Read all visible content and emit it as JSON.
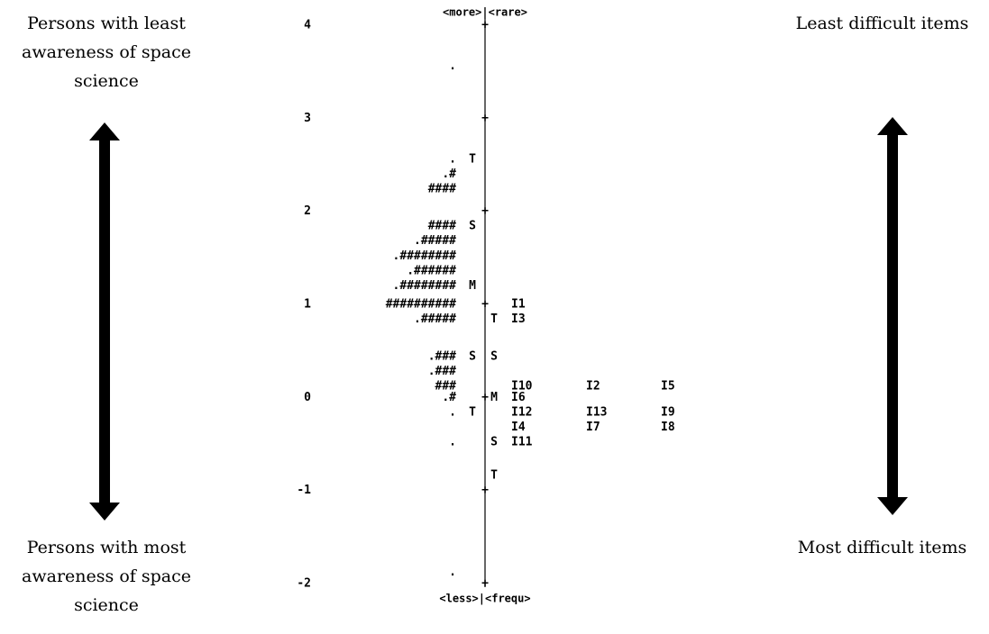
{
  "captions": {
    "left_top": "Persons with least awareness of space science",
    "left_bottom": "Persons with most awareness of space science",
    "right_top": "Least difficult items",
    "right_bottom": "Most difficult items"
  },
  "chart_data": {
    "type": "table",
    "top_label": "<more>|<rare>",
    "bottom_label": "<less>|<frequ>",
    "y_ticks": [
      "4",
      "3",
      "2",
      "1",
      "0",
      "-1",
      "-2"
    ],
    "ylim": [
      -2,
      4
    ],
    "rows": [
      {
        "y": 3.56,
        "persons": ".",
        "person_mark": "",
        "axis": "|",
        "item_mark": "",
        "items": []
      },
      {
        "y": 2.56,
        "persons": ".",
        "person_mark": "T",
        "axis": "|",
        "item_mark": "",
        "items": []
      },
      {
        "y": 2.4,
        "persons": ".#",
        "person_mark": "",
        "axis": "|",
        "item_mark": "",
        "items": []
      },
      {
        "y": 2.24,
        "persons": "####",
        "person_mark": "",
        "axis": "|",
        "item_mark": "",
        "items": []
      },
      {
        "y": 1.84,
        "persons": "####",
        "person_mark": "S",
        "axis": "|",
        "item_mark": "",
        "items": []
      },
      {
        "y": 1.68,
        "persons": ".#####",
        "person_mark": "",
        "axis": "|",
        "item_mark": "",
        "items": []
      },
      {
        "y": 1.52,
        "persons": ".########",
        "person_mark": "",
        "axis": "|",
        "item_mark": "",
        "items": []
      },
      {
        "y": 1.36,
        "persons": ".######",
        "person_mark": "",
        "axis": "|",
        "item_mark": "",
        "items": []
      },
      {
        "y": 1.2,
        "persons": ".########",
        "person_mark": "M",
        "axis": "|",
        "item_mark": "",
        "items": []
      },
      {
        "y": 1.0,
        "persons": "##########",
        "person_mark": "",
        "axis": "+",
        "item_mark": "",
        "items": [
          "I1"
        ]
      },
      {
        "y": 0.84,
        "persons": ".#####",
        "person_mark": "",
        "axis": "|",
        "item_mark": "T",
        "items": [
          "I3"
        ]
      },
      {
        "y": 0.44,
        "persons": ".###",
        "person_mark": "S",
        "axis": "|",
        "item_mark": "S",
        "items": []
      },
      {
        "y": 0.28,
        "persons": ".###",
        "person_mark": "",
        "axis": "|",
        "item_mark": "",
        "items": []
      },
      {
        "y": 0.12,
        "persons": "###",
        "person_mark": "",
        "axis": "|",
        "item_mark": "",
        "items": [
          "I10",
          "I2",
          "I5"
        ]
      },
      {
        "y": 0.0,
        "persons": ".#",
        "person_mark": "",
        "axis": "+",
        "item_mark": "M",
        "items": [
          "I6"
        ]
      },
      {
        "y": -0.16,
        "persons": ".",
        "person_mark": "T",
        "axis": "|",
        "item_mark": "",
        "items": [
          "I12",
          "I13",
          "I9"
        ]
      },
      {
        "y": -0.32,
        "persons": "",
        "person_mark": "",
        "axis": "|",
        "item_mark": "",
        "items": [
          "I4",
          "I7",
          "I8"
        ]
      },
      {
        "y": -0.48,
        "persons": ".",
        "person_mark": "",
        "axis": "|",
        "item_mark": "S",
        "items": [
          "I11"
        ]
      },
      {
        "y": -0.84,
        "persons": "",
        "person_mark": "",
        "axis": "|",
        "item_mark": "T",
        "items": []
      },
      {
        "y": -1.88,
        "persons": ".",
        "person_mark": "",
        "axis": "|",
        "item_mark": "",
        "items": []
      }
    ]
  }
}
